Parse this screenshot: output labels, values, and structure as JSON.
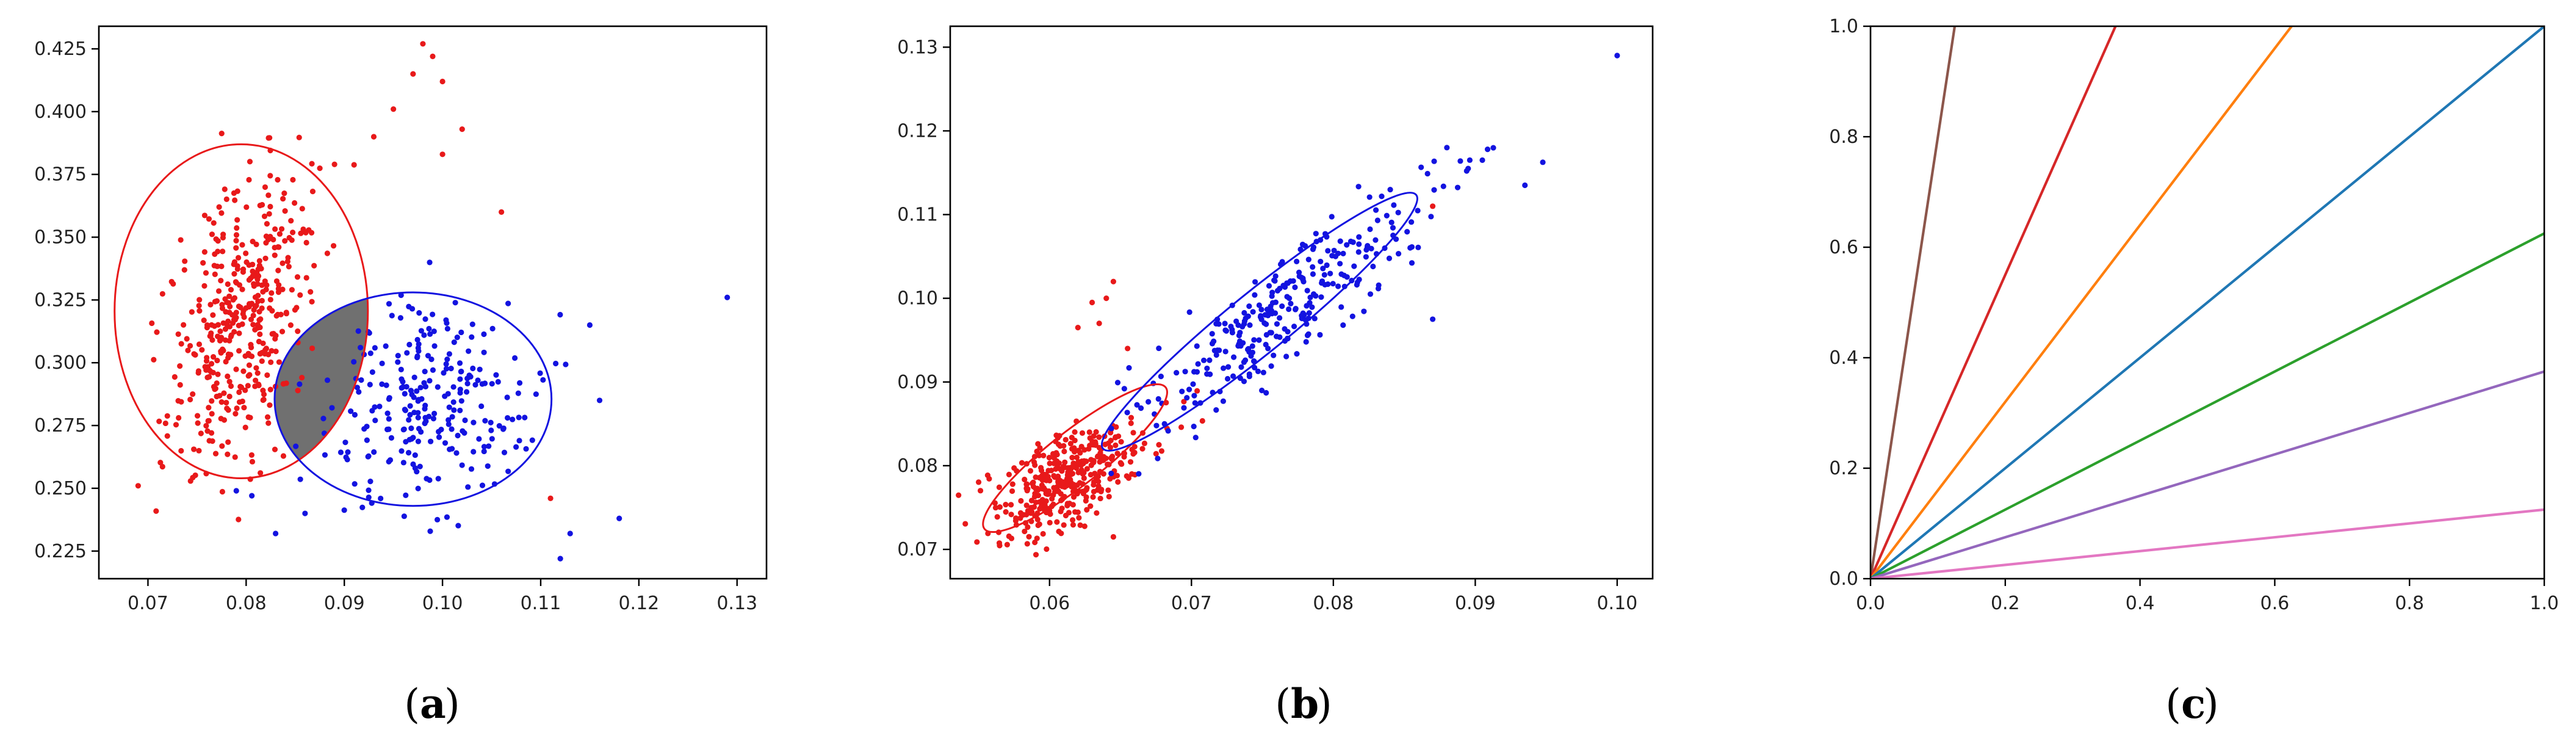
{
  "colors": {
    "red": "#e8191a",
    "blue": "#1313e0",
    "overlap": "#707070",
    "frame": "#000000"
  },
  "chart_data": [
    {
      "id": "a",
      "panel_label": "a",
      "type": "scatter",
      "xlim": [
        0.065,
        0.133
      ],
      "ylim": [
        0.214,
        0.434
      ],
      "xticks": [
        0.07,
        0.08,
        0.09,
        0.1,
        0.11,
        0.12,
        0.13
      ],
      "xtick_labels": [
        "0.07",
        "0.08",
        "0.09",
        "0.10",
        "0.11",
        "0.12",
        "0.13"
      ],
      "yticks": [
        0.225,
        0.25,
        0.275,
        0.3,
        0.325,
        0.35,
        0.375,
        0.4,
        0.425
      ],
      "ytick_labels": [
        "0.225",
        "0.250",
        "0.275",
        "0.300",
        "0.325",
        "0.350",
        "0.375",
        "0.400",
        "0.425"
      ],
      "clusters": [
        {
          "color": "red",
          "n": 420,
          "mean": [
            0.0795,
            0.318
          ],
          "std": [
            0.0036,
            0.03
          ],
          "corr": 0.45
        },
        {
          "color": "blue",
          "n": 260,
          "mean": [
            0.0985,
            0.284
          ],
          "std": [
            0.0055,
            0.02
          ],
          "corr": 0.0
        }
      ],
      "outliers": [
        {
          "color": "red",
          "x": 0.069,
          "y": 0.251
        },
        {
          "color": "red",
          "x": 0.098,
          "y": 0.427
        },
        {
          "color": "red",
          "x": 0.099,
          "y": 0.422
        },
        {
          "color": "red",
          "x": 0.1,
          "y": 0.412
        },
        {
          "color": "red",
          "x": 0.097,
          "y": 0.415
        },
        {
          "color": "red",
          "x": 0.093,
          "y": 0.39
        },
        {
          "color": "red",
          "x": 0.095,
          "y": 0.401
        },
        {
          "color": "red",
          "x": 0.102,
          "y": 0.393
        },
        {
          "color": "red",
          "x": 0.1,
          "y": 0.383
        },
        {
          "color": "red",
          "x": 0.089,
          "y": 0.379
        },
        {
          "color": "red",
          "x": 0.106,
          "y": 0.36
        },
        {
          "color": "red",
          "x": 0.111,
          "y": 0.246
        },
        {
          "color": "blue",
          "x": 0.129,
          "y": 0.326
        },
        {
          "color": "blue",
          "x": 0.115,
          "y": 0.315
        },
        {
          "color": "blue",
          "x": 0.116,
          "y": 0.285
        },
        {
          "color": "blue",
          "x": 0.118,
          "y": 0.238
        },
        {
          "color": "blue",
          "x": 0.113,
          "y": 0.232
        },
        {
          "color": "blue",
          "x": 0.112,
          "y": 0.222
        },
        {
          "color": "blue",
          "x": 0.083,
          "y": 0.232
        },
        {
          "color": "blue",
          "x": 0.086,
          "y": 0.24
        },
        {
          "color": "blue",
          "x": 0.079,
          "y": 0.249
        }
      ],
      "ellipses": [
        {
          "color": "red",
          "center": [
            0.0795,
            0.3205
          ],
          "rx": 0.0129,
          "ry": 0.0665
        },
        {
          "color": "blue",
          "center": [
            0.097,
            0.2855
          ],
          "rx": 0.0141,
          "ry": 0.0425
        }
      ],
      "overlap_between": [
        0,
        1
      ]
    },
    {
      "id": "b",
      "panel_label": "b",
      "type": "scatter",
      "xlim": [
        0.053,
        0.1025
      ],
      "ylim": [
        0.0665,
        0.1325
      ],
      "xticks": [
        0.06,
        0.07,
        0.08,
        0.09,
        0.1
      ],
      "xtick_labels": [
        "0.06",
        "0.07",
        "0.08",
        "0.09",
        "0.10"
      ],
      "yticks": [
        0.07,
        0.08,
        0.09,
        0.1,
        0.11,
        0.12,
        0.13
      ],
      "ytick_labels": [
        "0.07",
        "0.08",
        "0.09",
        "0.10",
        "0.11",
        "0.12",
        "0.13"
      ],
      "clusters": [
        {
          "color": "red",
          "n": 380,
          "mean": [
            0.0615,
            0.0785
          ],
          "std": [
            0.0028,
            0.0035
          ],
          "corr": 0.6
        },
        {
          "color": "blue",
          "n": 300,
          "mean": [
            0.0765,
            0.0985
          ],
          "std": [
            0.005,
            0.0068
          ],
          "corr": 0.88
        }
      ],
      "outliers": [
        {
          "color": "red",
          "x": 0.063,
          "y": 0.0995
        },
        {
          "color": "red",
          "x": 0.0635,
          "y": 0.097
        },
        {
          "color": "red",
          "x": 0.064,
          "y": 0.1
        },
        {
          "color": "red",
          "x": 0.0645,
          "y": 0.102
        },
        {
          "color": "red",
          "x": 0.062,
          "y": 0.0965
        },
        {
          "color": "red",
          "x": 0.0655,
          "y": 0.094
        },
        {
          "color": "red",
          "x": 0.087,
          "y": 0.111
        },
        {
          "color": "red",
          "x": 0.0645,
          "y": 0.0715
        },
        {
          "color": "blue",
          "x": 0.1,
          "y": 0.129
        },
        {
          "color": "blue",
          "x": 0.0935,
          "y": 0.1135
        },
        {
          "color": "blue",
          "x": 0.0905,
          "y": 0.1165
        },
        {
          "color": "blue",
          "x": 0.088,
          "y": 0.118
        },
        {
          "color": "blue",
          "x": 0.0895,
          "y": 0.1155
        },
        {
          "color": "blue",
          "x": 0.087,
          "y": 0.0975
        }
      ],
      "ellipses": [
        {
          "color": "red",
          "center": [
            0.0618,
            0.0809
          ],
          "rx": 0.0081,
          "ry": 0.0032,
          "angle_deg": -38
        },
        {
          "color": "blue",
          "center": [
            0.0748,
            0.0972
          ],
          "rx": 0.0142,
          "ry": 0.0036,
          "angle_deg": -39
        }
      ],
      "overlap_between": [
        0,
        1
      ]
    },
    {
      "id": "c",
      "panel_label": "c",
      "type": "line",
      "xlim": [
        0.0,
        1.0
      ],
      "ylim": [
        0.0,
        1.0
      ],
      "xticks": [
        0.0,
        0.2,
        0.4,
        0.6,
        0.8,
        1.0
      ],
      "xtick_labels": [
        "0.0",
        "0.2",
        "0.4",
        "0.6",
        "0.8",
        "1.0"
      ],
      "yticks": [
        0.0,
        0.2,
        0.4,
        0.6,
        0.8,
        1.0
      ],
      "ytick_labels": [
        "0.0",
        "0.2",
        "0.4",
        "0.6",
        "0.8",
        "1.0"
      ],
      "series": [
        {
          "color": "#8c564b",
          "slope": 8.0
        },
        {
          "color": "#d62728",
          "slope": 2.75
        },
        {
          "color": "#ff7f0e",
          "slope": 1.6
        },
        {
          "color": "#1f77b4",
          "slope": 1.0
        },
        {
          "color": "#2ca02c",
          "slope": 0.625
        },
        {
          "color": "#9467bd",
          "slope": 0.375
        },
        {
          "color": "#e377c2",
          "slope": 0.125
        }
      ]
    }
  ]
}
